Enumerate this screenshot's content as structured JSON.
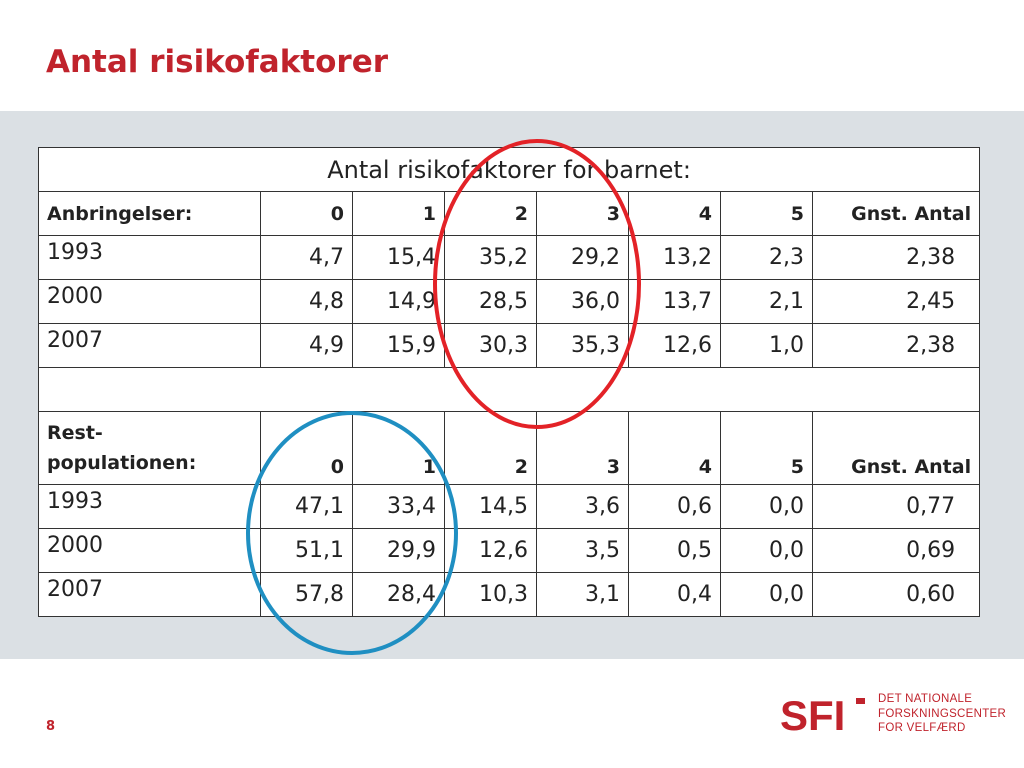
{
  "title": "Antal risikofaktorer",
  "table": {
    "caption": "Antal risikofaktorer for barnet:",
    "columns": [
      "0",
      "1",
      "2",
      "3",
      "4",
      "5",
      "Gnst. Antal"
    ],
    "group1": {
      "label": "Anbringelser:",
      "rows": [
        {
          "year": "1993",
          "values": [
            "4,7",
            "15,4",
            "35,2",
            "29,2",
            "13,2",
            "2,3",
            "2,38"
          ]
        },
        {
          "year": "2000",
          "values": [
            "4,8",
            "14,9",
            "28,5",
            "36,0",
            "13,7",
            "2,1",
            "2,45"
          ]
        },
        {
          "year": "2007",
          "values": [
            "4,9",
            "15,9",
            "30,3",
            "35,3",
            "12,6",
            "1,0",
            "2,38"
          ]
        }
      ]
    },
    "group2": {
      "label_line1": "Rest-",
      "label_line2": "populationen:",
      "rows": [
        {
          "year": "1993",
          "values": [
            "47,1",
            "33,4",
            "14,5",
            "3,6",
            "0,6",
            "0,0",
            "0,77"
          ]
        },
        {
          "year": "2000",
          "values": [
            "51,1",
            "29,9",
            "12,6",
            "3,5",
            "0,5",
            "0,0",
            "0,69"
          ]
        },
        {
          "year": "2007",
          "values": [
            "57,8",
            "28,4",
            "10,3",
            "3,1",
            "0,4",
            "0,0",
            "0,60"
          ]
        }
      ]
    }
  },
  "annotations": {
    "red_circle_color": "#e32227",
    "blue_circle_color": "#1f8fc2"
  },
  "footer": {
    "page_number": "8",
    "logo": {
      "mark": "SFI",
      "line1": "DET NATIONALE",
      "line2": "FORSKNINGSCENTER",
      "line3": "FOR VELFÆRD"
    }
  },
  "colors": {
    "accent": "#c0232c",
    "panel": "#dbe0e4"
  }
}
